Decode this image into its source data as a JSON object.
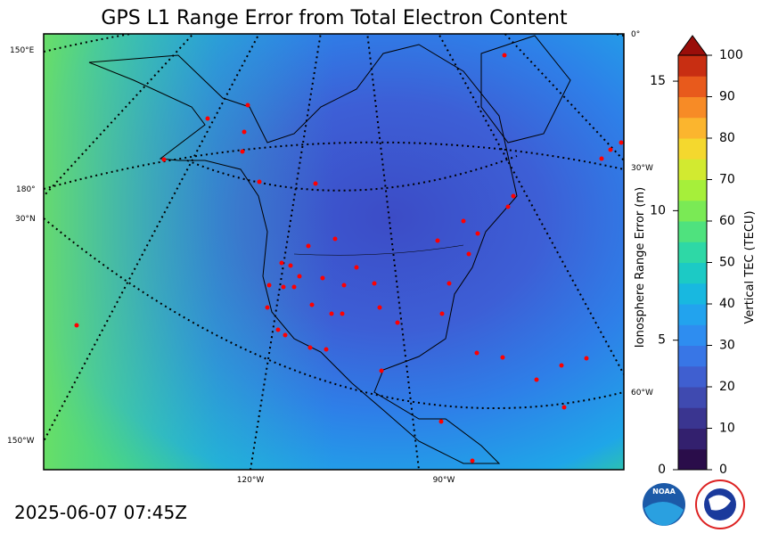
{
  "title": "GPS L1 Range Error from Total Electron Content",
  "timestamp": "2025-06-07 07:45Z",
  "map": {
    "graticule_labels": [
      "150°E",
      "180°",
      "30°N",
      "150°W",
      "0°",
      "30°W",
      "60°W",
      "120°W",
      "90°W"
    ]
  },
  "colorbar": {
    "left_label": "Ionosphere Range Error (m)",
    "left_lim": [
      0,
      16
    ],
    "left_ticks": [
      0,
      5,
      10,
      15
    ],
    "right_label": "Vertical TEC (TECU)",
    "right_lim": [
      0,
      100
    ],
    "right_ticks": [
      0,
      10,
      20,
      30,
      40,
      50,
      60,
      70,
      80,
      90,
      100
    ],
    "colors": [
      "#2a0d4a",
      "#33206e",
      "#3a3590",
      "#3f4ab0",
      "#3f5fd0",
      "#3876e6",
      "#2e8df0",
      "#22a3ee",
      "#18b8e0",
      "#1ccac5",
      "#2ed8a6",
      "#4fe27e",
      "#7aea55",
      "#a6ef3a",
      "#d2ea30",
      "#f4d82e",
      "#fbb52e",
      "#f78b26",
      "#e85a1c",
      "#c82e12",
      "#9a0e0a"
    ]
  }
}
